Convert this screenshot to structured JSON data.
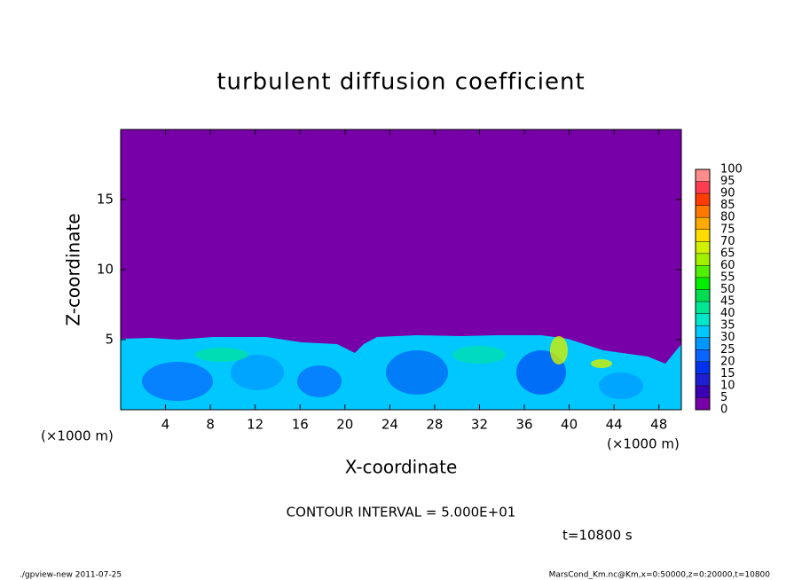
{
  "chart_data": {
    "type": "contour",
    "title": "turbulent diffusion coefficient",
    "x_label": "X-coordinate",
    "y_label": "Z-coordinate",
    "x_unit": "(×1000 m)",
    "y_unit": "(×1000 m)",
    "xlim": [
      0,
      50
    ],
    "xticks": [
      4,
      8,
      12,
      16,
      20,
      24,
      28,
      32,
      36,
      40,
      44,
      48
    ],
    "ylim": [
      0,
      20
    ],
    "yticks": [
      5,
      10,
      15
    ],
    "colorbar": {
      "levels": [
        0,
        5,
        10,
        15,
        20,
        25,
        30,
        35,
        40,
        45,
        50,
        55,
        60,
        65,
        70,
        75,
        80,
        85,
        90,
        95,
        100
      ],
      "colors": [
        "#7800a8",
        "#3c00b4",
        "#1e1ed2",
        "#0032f0",
        "#0a64ff",
        "#0096ff",
        "#00c8ff",
        "#00e6c8",
        "#00e696",
        "#00dc50",
        "#00f000",
        "#50f000",
        "#a0f000",
        "#d2f000",
        "#ffdc00",
        "#ffaa00",
        "#ff7800",
        "#ff3c00",
        "#ff3c50",
        "#ff8c8c"
      ]
    },
    "contour_interval": "CONTOUR INTERVAL = 5.000E+01",
    "time_label": "t=10800 s",
    "footer_left": "./gpview-new  2011-07-25",
    "footer_right": "MarsCond_Km.nc@Km,x=0:50000,z=0:20000,t=10800"
  }
}
